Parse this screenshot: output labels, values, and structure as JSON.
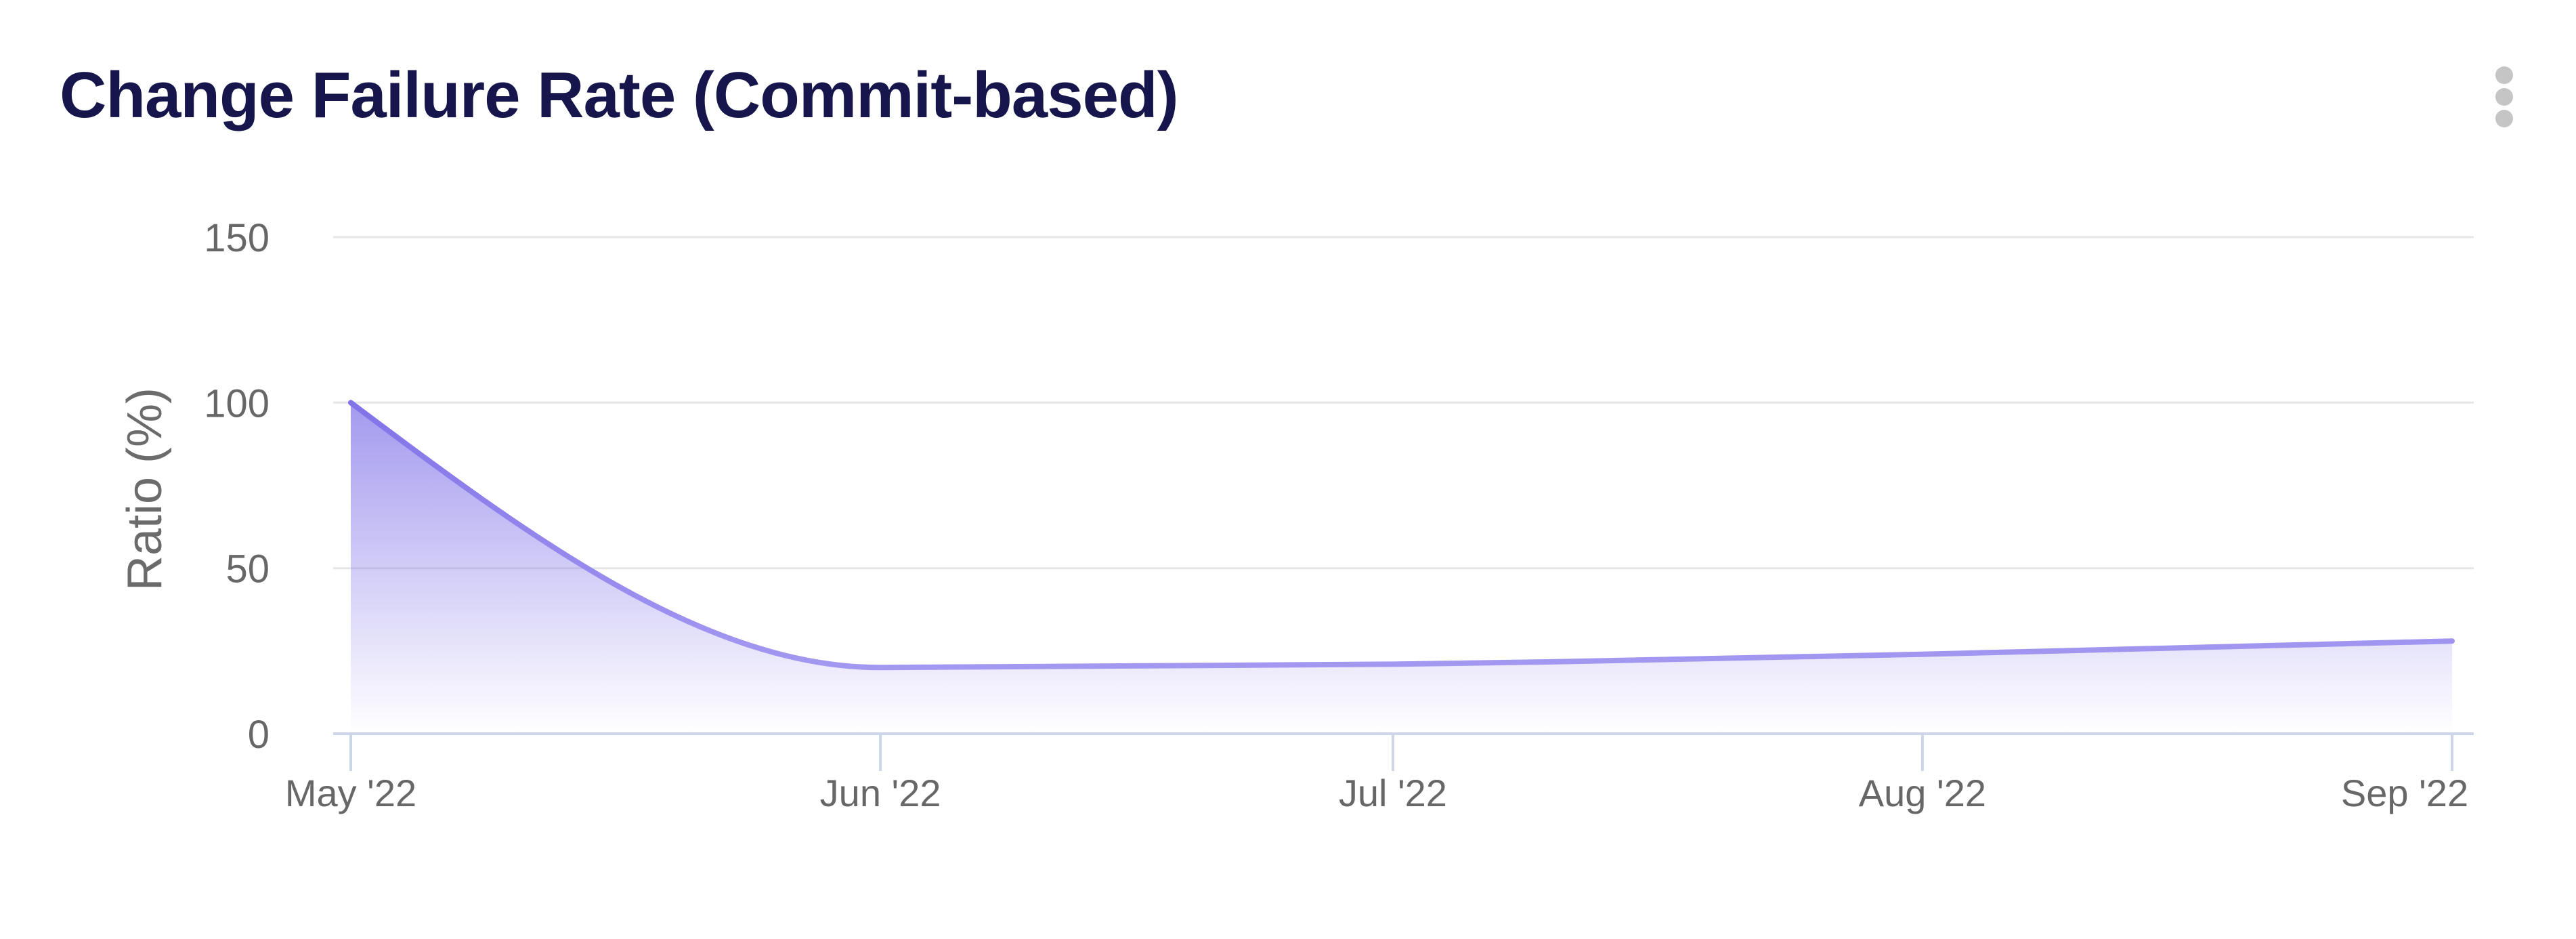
{
  "header": {
    "title": "Change Failure Rate (Commit-based)"
  },
  "chart_data": {
    "type": "area",
    "title": "Change Failure Rate (Commit-based)",
    "xlabel": "",
    "ylabel": "Ratio (%)",
    "ylim": [
      0,
      150
    ],
    "y_ticks": [
      0,
      50,
      100,
      150
    ],
    "x_tick_labels": [
      "May '22",
      "Jun '22",
      "Jul '22",
      "Aug '22",
      "Sep '22"
    ],
    "grid": "horizontal",
    "legend": "none",
    "curve": "smooth-monotone",
    "series": [
      {
        "name": "Change Failure Rate",
        "x": [
          "May '22",
          "Jun '22",
          "Jul '22",
          "Aug '22",
          "Sep '22"
        ],
        "x_days": [
          0,
          31,
          61,
          92,
          123
        ],
        "values": [
          100,
          20,
          21,
          24,
          28
        ]
      }
    ],
    "colors": {
      "line_top": "#8173e8",
      "line_bottom": "#aba2f3",
      "area_base": "#8072e8",
      "grid": "#e6e6e6",
      "axis": "#cdd5e8",
      "tick_label": "#676767",
      "axis_title": "#6b6b6b",
      "title": "#16164d",
      "menu_icon": "#c5c5c5"
    }
  }
}
